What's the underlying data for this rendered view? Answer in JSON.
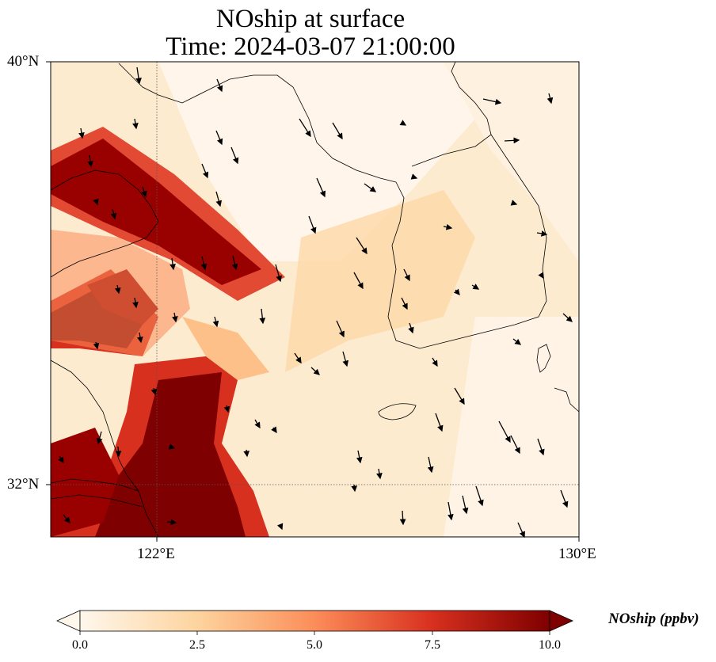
{
  "title": {
    "line1": "NOship at surface",
    "line2": "Time: 2024-03-07 21:00:00"
  },
  "axes": {
    "lat_labels": [
      "40°N",
      "32°N"
    ],
    "lon_labels": [
      "122°E",
      "130°E"
    ]
  },
  "colorbar": {
    "label": "NOship (ppbv)",
    "ticks": [
      "0.0",
      "2.5",
      "5.0",
      "7.5",
      "10.0"
    ],
    "colors": [
      "#fff7ec",
      "#fdd49e",
      "#fc8d59",
      "#d7301f",
      "#7f0000"
    ]
  }
}
